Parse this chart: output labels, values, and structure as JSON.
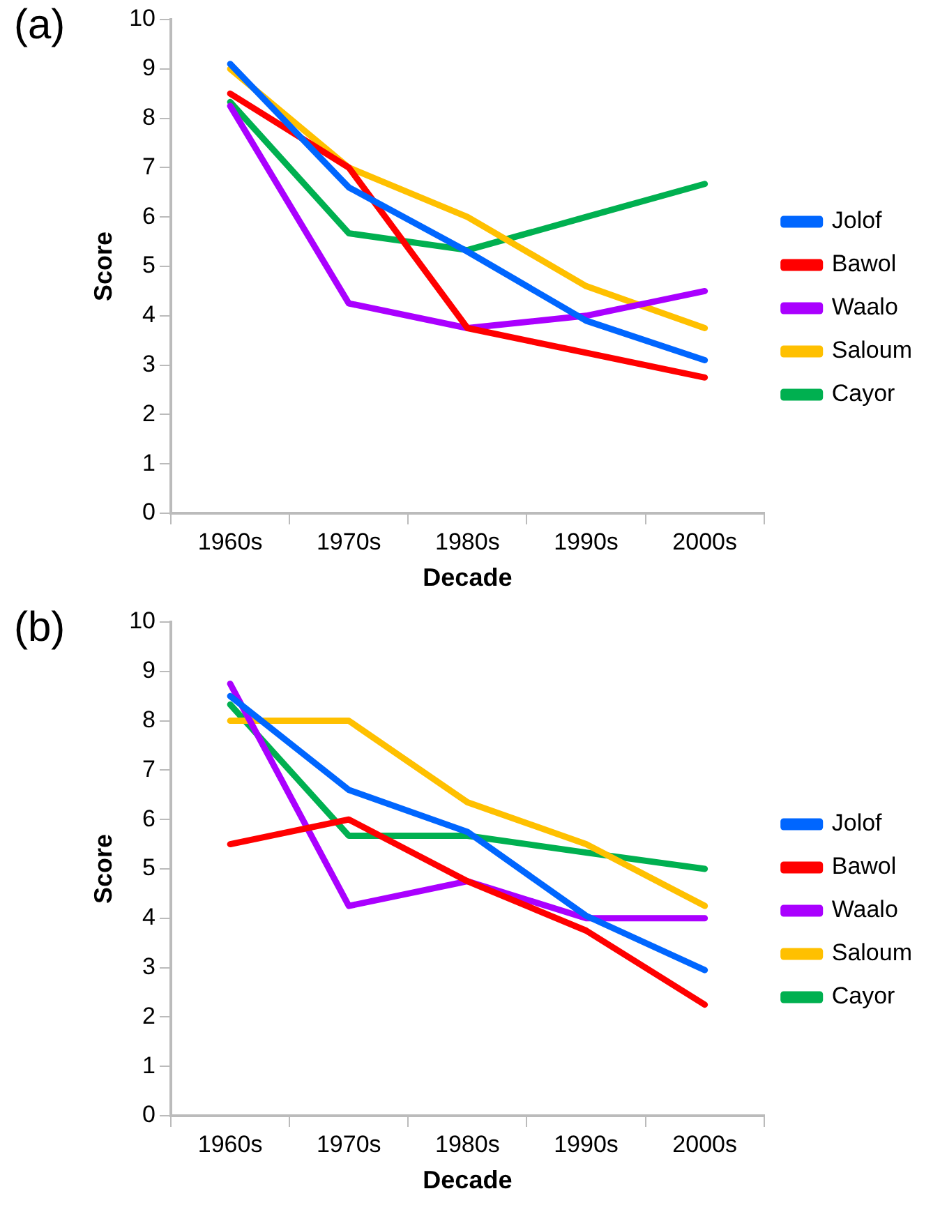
{
  "chart_data": [
    {
      "type": "line",
      "title": "(a)",
      "xlabel": "Decade",
      "ylabel": "Score",
      "categories": [
        "1960s",
        "1970s",
        "1980s",
        "1990s",
        "2000s"
      ],
      "ylim": [
        0,
        10
      ],
      "yticks": [
        0,
        1,
        2,
        3,
        4,
        5,
        6,
        7,
        8,
        9,
        10
      ],
      "grid": false,
      "legend": "right",
      "marker": "none",
      "series": [
        {
          "name": "Jolof",
          "color": "#0066ff",
          "values": [
            9.1,
            6.6,
            5.3,
            3.9,
            3.1
          ]
        },
        {
          "name": "Bawol",
          "color": "#ff0000",
          "values": [
            8.5,
            7.0,
            3.75,
            3.25,
            2.75
          ]
        },
        {
          "name": "Waalo",
          "color": "#aa00ff",
          "values": [
            8.25,
            4.25,
            3.75,
            4.0,
            4.5
          ]
        },
        {
          "name": "Saloum",
          "color": "#ffc000",
          "values": [
            9.0,
            7.0,
            6.0,
            4.6,
            3.75
          ]
        },
        {
          "name": "Cayor",
          "color": "#00b050",
          "values": [
            8.33,
            5.67,
            5.33,
            6.0,
            6.67
          ]
        }
      ]
    },
    {
      "type": "line",
      "title": "(b)",
      "xlabel": "Decade",
      "ylabel": "Score",
      "categories": [
        "1960s",
        "1970s",
        "1980s",
        "1990s",
        "2000s"
      ],
      "ylim": [
        0,
        10
      ],
      "yticks": [
        0,
        1,
        2,
        3,
        4,
        5,
        6,
        7,
        8,
        9,
        10
      ],
      "grid": false,
      "legend": "right",
      "marker": "none",
      "series": [
        {
          "name": "Jolof",
          "color": "#0066ff",
          "values": [
            8.5,
            6.6,
            5.75,
            4.05,
            2.95
          ]
        },
        {
          "name": "Bawol",
          "color": "#ff0000",
          "values": [
            5.5,
            6.0,
            4.75,
            3.75,
            2.25
          ]
        },
        {
          "name": "Waalo",
          "color": "#aa00ff",
          "values": [
            8.75,
            4.25,
            4.75,
            4.0,
            4.0
          ]
        },
        {
          "name": "Saloum",
          "color": "#ffc000",
          "values": [
            8.0,
            8.0,
            6.35,
            5.5,
            4.25
          ]
        },
        {
          "name": "Cayor",
          "color": "#00b050",
          "values": [
            8.33,
            5.67,
            5.67,
            5.33,
            5.0
          ]
        }
      ]
    }
  ]
}
